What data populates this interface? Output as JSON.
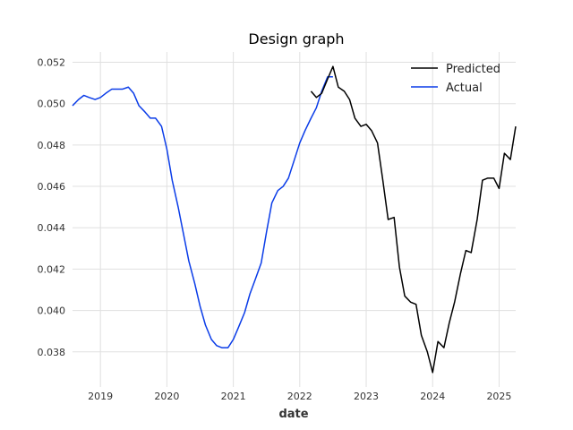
{
  "chart_data": {
    "type": "line",
    "title": "Design graph",
    "xlabel": "date",
    "ylabel": "",
    "xlim": [
      2018.58,
      2025.25
    ],
    "ylim": [
      0.0363,
      0.0525
    ],
    "x_ticks": [
      2019,
      2020,
      2021,
      2022,
      2023,
      2024,
      2025
    ],
    "x_tick_labels": [
      "2019",
      "2020",
      "2021",
      "2022",
      "2023",
      "2024",
      "2025"
    ],
    "y_ticks": [
      0.038,
      0.04,
      0.042,
      0.044,
      0.046,
      0.048,
      0.05,
      0.052
    ],
    "y_tick_labels": [
      "0.038",
      "0.040",
      "0.042",
      "0.044",
      "0.046",
      "0.048",
      "0.050",
      "0.052"
    ],
    "grid": true,
    "legend_position": "top-right",
    "series": [
      {
        "name": "Predicted",
        "color": "#000000",
        "points": [
          [
            2022.17,
            0.0506
          ],
          [
            2022.25,
            0.0503
          ],
          [
            2022.33,
            0.0505
          ],
          [
            2022.42,
            0.0512
          ],
          [
            2022.5,
            0.0518
          ],
          [
            2022.58,
            0.0508
          ],
          [
            2022.67,
            0.0506
          ],
          [
            2022.75,
            0.0502
          ],
          [
            2022.83,
            0.0493
          ],
          [
            2022.92,
            0.0489
          ],
          [
            2023.0,
            0.049
          ],
          [
            2023.08,
            0.0487
          ],
          [
            2023.17,
            0.0481
          ],
          [
            2023.25,
            0.0463
          ],
          [
            2023.33,
            0.0444
          ],
          [
            2023.42,
            0.0445
          ],
          [
            2023.5,
            0.0421
          ],
          [
            2023.58,
            0.0407
          ],
          [
            2023.67,
            0.0404
          ],
          [
            2023.75,
            0.0403
          ],
          [
            2023.83,
            0.0388
          ],
          [
            2023.92,
            0.038
          ],
          [
            2024.0,
            0.037
          ],
          [
            2024.08,
            0.0385
          ],
          [
            2024.17,
            0.0382
          ],
          [
            2024.25,
            0.0394
          ],
          [
            2024.33,
            0.0404
          ],
          [
            2024.42,
            0.0418
          ],
          [
            2024.5,
            0.0429
          ],
          [
            2024.58,
            0.0428
          ],
          [
            2024.67,
            0.0444
          ],
          [
            2024.75,
            0.0463
          ],
          [
            2024.83,
            0.0464
          ],
          [
            2024.92,
            0.0464
          ],
          [
            2025.0,
            0.0459
          ],
          [
            2025.08,
            0.0476
          ],
          [
            2025.17,
            0.0473
          ],
          [
            2025.25,
            0.0489
          ]
        ]
      },
      {
        "name": "Actual",
        "color": "#0a3ce8",
        "points": [
          [
            2018.58,
            0.0499
          ],
          [
            2018.67,
            0.0502
          ],
          [
            2018.75,
            0.0504
          ],
          [
            2018.83,
            0.0503
          ],
          [
            2018.92,
            0.0502
          ],
          [
            2019.0,
            0.0503
          ],
          [
            2019.08,
            0.0505
          ],
          [
            2019.17,
            0.0507
          ],
          [
            2019.25,
            0.0507
          ],
          [
            2019.33,
            0.0507
          ],
          [
            2019.42,
            0.0508
          ],
          [
            2019.5,
            0.0505
          ],
          [
            2019.58,
            0.0499
          ],
          [
            2019.67,
            0.0496
          ],
          [
            2019.75,
            0.0493
          ],
          [
            2019.83,
            0.0493
          ],
          [
            2019.92,
            0.0489
          ],
          [
            2020.0,
            0.0478
          ],
          [
            2020.08,
            0.0463
          ],
          [
            2020.17,
            0.045
          ],
          [
            2020.25,
            0.0437
          ],
          [
            2020.33,
            0.0424
          ],
          [
            2020.42,
            0.0413
          ],
          [
            2020.5,
            0.0402
          ],
          [
            2020.58,
            0.0393
          ],
          [
            2020.67,
            0.0386
          ],
          [
            2020.75,
            0.0383
          ],
          [
            2020.83,
            0.0382
          ],
          [
            2020.92,
            0.0382
          ],
          [
            2021.0,
            0.0386
          ],
          [
            2021.08,
            0.0392
          ],
          [
            2021.17,
            0.0399
          ],
          [
            2021.25,
            0.0408
          ],
          [
            2021.33,
            0.0415
          ],
          [
            2021.42,
            0.0423
          ],
          [
            2021.5,
            0.0438
          ],
          [
            2021.58,
            0.0452
          ],
          [
            2021.67,
            0.0458
          ],
          [
            2021.75,
            0.046
          ],
          [
            2021.83,
            0.0464
          ],
          [
            2021.92,
            0.0473
          ],
          [
            2022.0,
            0.0481
          ],
          [
            2022.08,
            0.0487
          ],
          [
            2022.17,
            0.0493
          ],
          [
            2022.25,
            0.0498
          ],
          [
            2022.33,
            0.0506
          ],
          [
            2022.42,
            0.0513
          ],
          [
            2022.5,
            0.0513
          ]
        ]
      }
    ]
  }
}
